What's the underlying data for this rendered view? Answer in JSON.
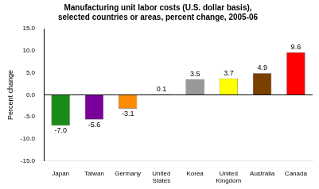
{
  "chart_data": {
    "type": "bar",
    "title": "Manufacturing unit labor costs (U.S. dollar basis),\nselected countries or areas, percent change, 2005-06",
    "ylabel": "Percent change",
    "categories": [
      "Japan",
      "Taiwan",
      "Germany",
      "United\nStates",
      "Korea",
      "United\nKingdom",
      "Australia",
      "Canada"
    ],
    "values": [
      -7.0,
      -5.6,
      -3.1,
      0.1,
      3.5,
      3.7,
      4.9,
      9.6
    ],
    "value_labels": [
      "-7.0",
      "-5.6",
      "-3.1",
      "0.1",
      "3.5",
      "3.7",
      "4.9",
      "9.6"
    ],
    "data_labels": true,
    "colors": [
      "#1a8c1a",
      "#7b0099",
      "#FF8C00",
      "#222222",
      "#999999",
      "#FFFF00",
      "#7B3F00",
      "#FF0000"
    ],
    "ylim": [
      -15.0,
      15.0
    ],
    "yticks": [
      {
        "value": -15.0,
        "label": "-15.0"
      },
      {
        "value": -10.0,
        "label": "-10.0"
      },
      {
        "value": -5.0,
        "label": "-5.0"
      },
      {
        "value": 0.0,
        "label": "0.0"
      },
      {
        "value": 5.0,
        "label": "5.0"
      },
      {
        "value": 10.0,
        "label": "10.0"
      },
      {
        "value": 15.0,
        "label": "15.0"
      }
    ],
    "grid": false
  }
}
